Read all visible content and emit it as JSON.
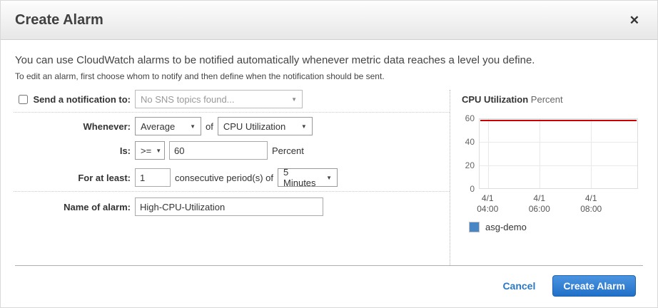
{
  "dialog": {
    "title": "Create Alarm"
  },
  "icons": {
    "close": "✕",
    "dropdown": "▼"
  },
  "intro": {
    "line1": "You can use CloudWatch alarms to be notified automatically whenever metric data reaches a level you define.",
    "line2": "To edit an alarm, first choose whom to notify and then define when the notification should be sent."
  },
  "form": {
    "notification": {
      "label": "Send a notification to:",
      "checked": false,
      "select_value": "No SNS topics found..."
    },
    "whenever": {
      "label": "Whenever:",
      "statistic": "Average",
      "of_text": "of",
      "metric": "CPU Utilization"
    },
    "condition": {
      "label": "Is:",
      "operator": ">=",
      "threshold": "60",
      "unit": "Percent"
    },
    "duration": {
      "label": "For at least:",
      "periods": "1",
      "middle_text": "consecutive period(s) of",
      "period_length": "5 Minutes"
    },
    "name": {
      "label": "Name of alarm:",
      "value": "High-CPU-Utilization"
    }
  },
  "chart_data": {
    "type": "line",
    "title": "CPU Utilization",
    "unit": "Percent",
    "ylabel": "Percent",
    "ylim": [
      0,
      60
    ],
    "yticks": [
      0,
      20,
      40,
      60
    ],
    "xticks": [
      {
        "date": "4/1",
        "time": "04:00"
      },
      {
        "date": "4/1",
        "time": "06:00"
      },
      {
        "date": "4/1",
        "time": "08:00"
      }
    ],
    "threshold": {
      "value": 60,
      "color": "#cc0000"
    },
    "series": [
      {
        "name": "asg-demo",
        "color": "#4886c5",
        "values": []
      }
    ],
    "legend_position": "bottom",
    "grid": true
  },
  "footer": {
    "cancel_label": "Cancel",
    "create_label": "Create Alarm"
  },
  "colors": {
    "accent_blue": "#2a78c5",
    "button_blue": "#2170c8",
    "threshold_red": "#cc0000",
    "series_blue": "#4886c5"
  }
}
